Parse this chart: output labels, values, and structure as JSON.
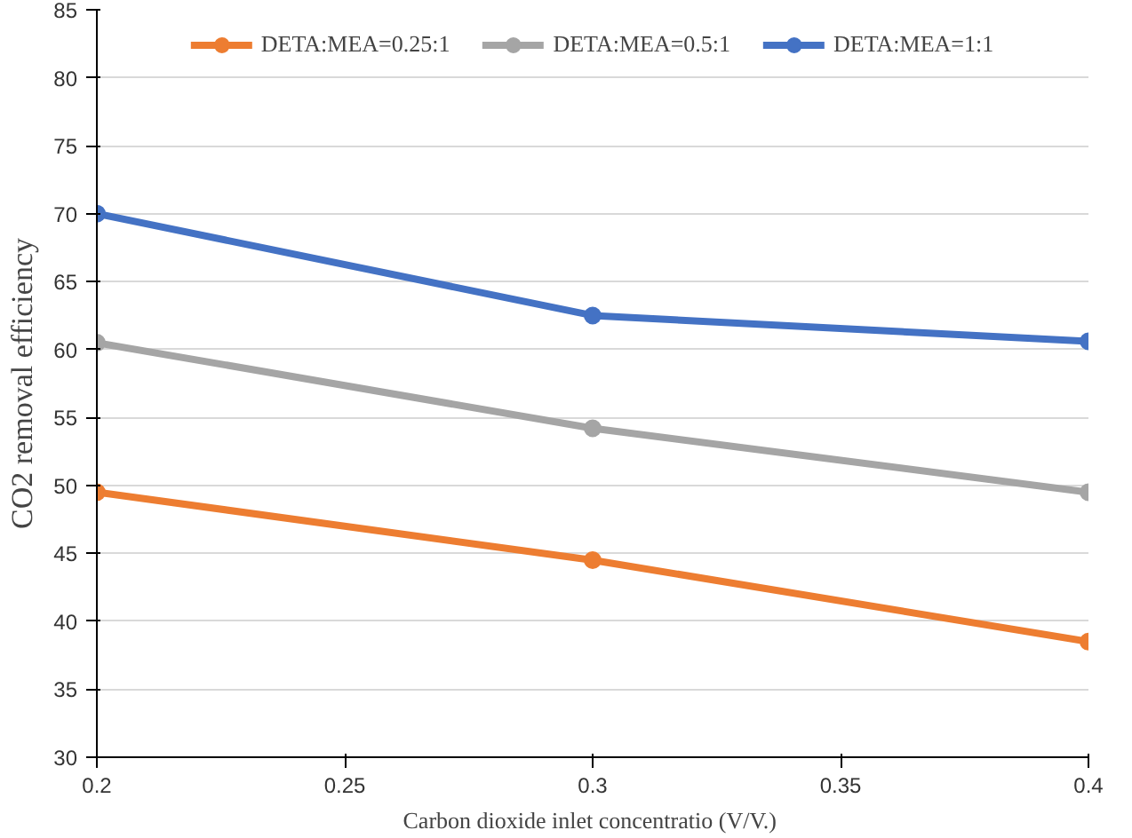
{
  "chart_data": {
    "type": "line",
    "xlabel": "Carbon dioxide inlet  concentratio (V/V.)",
    "ylabel": "CO2 removal efficiency",
    "x": [
      0.2,
      0.3,
      0.4
    ],
    "xlim": [
      0.2,
      0.4
    ],
    "xticks": [
      0.2,
      0.25,
      0.3,
      0.35,
      0.4
    ],
    "ylim": [
      30,
      85
    ],
    "yticks": [
      30,
      35,
      40,
      45,
      50,
      55,
      60,
      65,
      70,
      75,
      80,
      85
    ],
    "series": [
      {
        "name": "DETA:MEA=0.25:1",
        "color": "#ed7d31",
        "values": [
          49.5,
          44.5,
          38.5
        ]
      },
      {
        "name": "DETA:MEA=0.5:1",
        "color": "#a5a5a5",
        "values": [
          60.5,
          54.2,
          49.5
        ]
      },
      {
        "name": "DETA:MEA=1:1",
        "color": "#4472c4",
        "values": [
          70,
          62.5,
          60.6
        ]
      }
    ],
    "grid": "y",
    "legend": "top",
    "marker": "circle",
    "line_style": "solid"
  }
}
